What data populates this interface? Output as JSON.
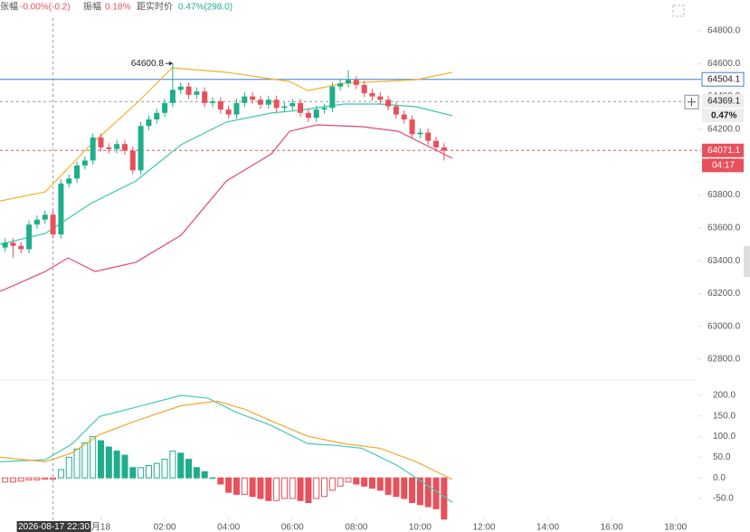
{
  "chart_data": {
    "type": "candlestick",
    "info": [
      {
        "label": "张幅",
        "value": "-0.00%(-0.2)"
      },
      {
        "label": "振幅",
        "value": "0.18%"
      },
      {
        "label": "距实时价",
        "value": "0.47%(298.0)"
      }
    ],
    "x": [
      -3,
      -2.75,
      -2.5,
      -2.25,
      -2,
      -1.75,
      -1.5,
      -1.25,
      -1,
      -0.75,
      -0.5,
      -0.25,
      0,
      0.25,
      0.5,
      0.75,
      1,
      1.25,
      1.5,
      1.75,
      2,
      2.25,
      2.5,
      2.75,
      3,
      3.25,
      3.5,
      3.75,
      4,
      4.25,
      4.5,
      4.75,
      5,
      5.25,
      5.5,
      5.75,
      6,
      6.25,
      6.5,
      6.75,
      7,
      7.25,
      7.5,
      7.75,
      8,
      8.25,
      8.5,
      8.75,
      9,
      9.25,
      9.5,
      9.75,
      10,
      10.25,
      10.5,
      10.75
    ],
    "open": [
      63480,
      63510,
      63490,
      63470,
      63620,
      63650,
      63680,
      63560,
      63870,
      63900,
      63980,
      64010,
      64150,
      64090,
      64080,
      64110,
      64070,
      63950,
      64220,
      64260,
      64300,
      64360,
      64440,
      64460,
      64410,
      64430,
      64360,
      64370,
      64320,
      64290,
      64360,
      64400,
      64380,
      64350,
      64380,
      64330,
      64340,
      64360,
      64300,
      64270,
      64320,
      64330,
      64460,
      64480,
      64500,
      64470,
      64420,
      64400,
      64380,
      64340,
      64290,
      64260,
      64170,
      64180,
      64130,
      64090
    ],
    "high": [
      63535,
      63535,
      63515,
      63645,
      63675,
      63705,
      63705,
      63895,
      63925,
      64005,
      64035,
      64175,
      64175,
      64115,
      64135,
      64135,
      64095,
      64245,
      64285,
      64325,
      64385,
      64600.8,
      64485,
      64485,
      64455,
      64455,
      64395,
      64395,
      64345,
      64385,
      64425,
      64425,
      64405,
      64405,
      64405,
      64365,
      64385,
      64385,
      64325,
      64345,
      64355,
      64485,
      64505,
      64560,
      64525,
      64495,
      64445,
      64425,
      64405,
      64365,
      64315,
      64285,
      64205,
      64205,
      64155,
      64115
    ],
    "low": [
      63455,
      63420,
      63445,
      63445,
      63595,
      63625,
      63535,
      63535,
      63845,
      63875,
      63955,
      63985,
      64065,
      64055,
      64055,
      64045,
      63925,
      63925,
      64195,
      64235,
      64275,
      64335,
      64415,
      64385,
      64385,
      64335,
      64335,
      64295,
      64265,
      64265,
      64335,
      64355,
      64325,
      64325,
      64305,
      64305,
      64315,
      64275,
      64245,
      64245,
      64295,
      64305,
      64435,
      64455,
      64445,
      64395,
      64375,
      64355,
      64315,
      64265,
      64235,
      64145,
      64145,
      64105,
      64065,
      64010
    ],
    "close": [
      63510,
      63490,
      63470,
      63620,
      63650,
      63680,
      63560,
      63870,
      63900,
      63980,
      64010,
      64150,
      64090,
      64080,
      64110,
      64070,
      63950,
      64220,
      64260,
      64300,
      64360,
      64440,
      64460,
      64410,
      64430,
      64360,
      64370,
      64320,
      64290,
      64360,
      64400,
      64380,
      64350,
      64380,
      64330,
      64340,
      64360,
      64300,
      64270,
      64320,
      64330,
      64460,
      64480,
      64500,
      64470,
      64420,
      64400,
      64380,
      64340,
      64290,
      64260,
      64170,
      64180,
      64130,
      64090,
      64071.1
    ],
    "up_color": "#1fae8c",
    "down_color": "#e8505b",
    "series": [
      {
        "color": "#f0b429",
        "x": [
          -3.16,
          -1.74,
          -0.32,
          1.09,
          2.23,
          3.93,
          5.91,
          6.48,
          7.61,
          8.74,
          9.88,
          11.01
        ],
        "values": [
          63764,
          63819,
          64106,
          64354,
          64574,
          64547,
          64491,
          64436,
          64480,
          64491,
          64502,
          64547
        ]
      },
      {
        "color": "#3cc8a8",
        "x": [
          -3.16,
          -1.74,
          -0.32,
          1.09,
          2.51,
          3.93,
          5.34,
          6.19,
          7.61,
          8.74,
          9.88,
          11.01
        ],
        "values": [
          63500,
          63566,
          63748,
          63885,
          64106,
          64244,
          64299,
          64315,
          64354,
          64354,
          64337,
          64282
        ]
      },
      {
        "color": "#e0457b",
        "x": [
          -3.16,
          -1.74,
          -1.03,
          -0.18,
          1.09,
          2.51,
          3.93,
          5.34,
          5.91,
          6.76,
          8.18,
          9.31,
          10.16,
          11.01
        ],
        "values": [
          63213,
          63334,
          63417,
          63334,
          63390,
          63555,
          63885,
          64051,
          64188,
          64227,
          64216,
          64188,
          64106,
          64023
        ]
      }
    ],
    "xlim": [
      -3.16,
      18.66
    ],
    "xticks": [
      {
        "value": 0,
        "label": "月18"
      },
      {
        "value": 2,
        "label": "02:00"
      },
      {
        "value": 4,
        "label": "04:00"
      },
      {
        "value": 6,
        "label": "06:00"
      },
      {
        "value": 8,
        "label": "08:00"
      },
      {
        "value": 10,
        "label": "10:00"
      },
      {
        "value": 12,
        "label": "12:00"
      },
      {
        "value": 14,
        "label": "14:00"
      },
      {
        "value": 16,
        "label": "16:00"
      },
      {
        "value": 18,
        "label": "18:00"
      }
    ],
    "ylim": [
      62700,
      64990
    ],
    "yticks": [
      {
        "value": 62800,
        "label": "62800.0"
      },
      {
        "value": 63000,
        "label": "63000.0"
      },
      {
        "value": 63200,
        "label": "63200.0"
      },
      {
        "value": 63400,
        "label": "63400.0"
      },
      {
        "value": 63600,
        "label": "63600.0"
      },
      {
        "value": 63800,
        "label": "63800.0"
      },
      {
        "value": 64000,
        "label": "64000.0"
      },
      {
        "value": 64200,
        "label": "64200.0"
      },
      {
        "value": 64400,
        "label": "64400.0"
      },
      {
        "value": 64600,
        "label": "64600.0"
      },
      {
        "value": 64800,
        "label": "64800.0"
      }
    ],
    "reference_price": {
      "value": 64504.1,
      "color": "#3d7fd6"
    },
    "last_price": {
      "value": 64071.1,
      "countdown": "04:17"
    },
    "crosshair": {
      "x": -1.5,
      "x_label": "2026-08-17 22:30",
      "y": 64369.1,
      "change": "0.47%"
    },
    "max_marker": 21,
    "macd": {
      "ylim": [
        -90,
        240
      ],
      "yticks": [
        {
          "value": -50,
          "label": "-50.0"
        },
        {
          "value": 0,
          "label": "0.0"
        },
        {
          "value": 50,
          "label": "50.0"
        },
        {
          "value": 100,
          "label": "100.0"
        },
        {
          "value": 150,
          "label": "150.0"
        },
        {
          "value": 200,
          "label": "200.0"
        }
      ],
      "histogram": [
        -10,
        -10,
        -8,
        -5,
        -5,
        -3,
        -3,
        20,
        50,
        70,
        85,
        100,
        90,
        75,
        65,
        55,
        25,
        25,
        30,
        35,
        45,
        65,
        60,
        45,
        25,
        15,
        0,
        -15,
        -35,
        -40,
        -40,
        -45,
        -50,
        -55,
        -55,
        -50,
        -50,
        -55,
        -60,
        -50,
        -45,
        -30,
        -20,
        -10,
        -15,
        -20,
        -25,
        -30,
        -40,
        -45,
        -50,
        -60,
        -65,
        -70,
        -75,
        -100
      ],
      "series": [
        {
          "color": "#46c9b5",
          "x": [
            -3.16,
            -1.74,
            -0.89,
            -0.04,
            1.09,
            2.51,
            3.36,
            4.21,
            5.34,
            6.48,
            7.33,
            8.18,
            9.31,
            10.16,
            11.01
          ],
          "values": [
            39,
            44,
            83,
            149,
            171,
            200,
            193,
            160,
            127,
            83,
            79,
            72,
            29,
            -15,
            -59
          ]
        },
        {
          "color": "#f0a830",
          "x": [
            -3.16,
            -1.74,
            -0.89,
            -0.04,
            1.09,
            2.51,
            3.64,
            4.49,
            5.34,
            6.48,
            7.61,
            8.74,
            9.88,
            11.01
          ],
          "values": [
            50,
            39,
            61,
            105,
            138,
            175,
            186,
            167,
            138,
            101,
            83,
            72,
            39,
            -4
          ]
        }
      ]
    }
  }
}
